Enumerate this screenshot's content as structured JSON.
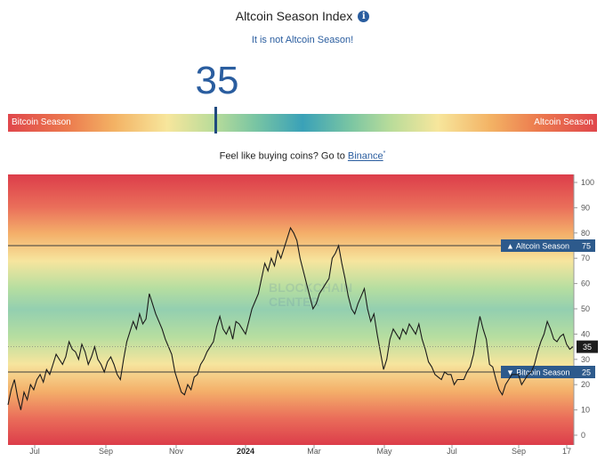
{
  "header": {
    "title": "Altcoin Season Index",
    "info_icon": "info-icon",
    "status_text": "It is not Altcoin Season!",
    "index_value": "35"
  },
  "meter": {
    "left_label": "Bitcoin Season",
    "right_label": "Altcoin Season",
    "value": 35
  },
  "promo": {
    "text": "Feel like buying coins? Go to ",
    "link_text": "Binance",
    "sup": "*"
  },
  "watermark": {
    "line1": "BLOCKCHAIN",
    "line2": "CENTER"
  },
  "chart_data": {
    "type": "line",
    "xlabels": [
      "Jul",
      "Sep",
      "Nov",
      "2024",
      "Mar",
      "May",
      "Jul",
      "Sep",
      "17"
    ],
    "bold_xlabel": "2024",
    "ylim": [
      0,
      100
    ],
    "yticks": [
      0,
      10,
      20,
      30,
      40,
      50,
      60,
      70,
      80,
      90,
      100
    ],
    "reference_lines": [
      {
        "label": "Altcoin Season",
        "value": 75
      },
      {
        "label": "Bitcoin Season",
        "value": 25
      }
    ],
    "current_value": 35,
    "series": [
      {
        "values": [
          12,
          18,
          22,
          15,
          10,
          17,
          14,
          20,
          18,
          22,
          24,
          21,
          26,
          24,
          28,
          32,
          30,
          28,
          31,
          37,
          34,
          33,
          30,
          36,
          33,
          28,
          31,
          35,
          30,
          28,
          25,
          29,
          31,
          28,
          24,
          22,
          30,
          37,
          41,
          45,
          42,
          48,
          44,
          46,
          56,
          52,
          48,
          45,
          42,
          38,
          35,
          32,
          25,
          21,
          17,
          16,
          20,
          18,
          23,
          24,
          28,
          30,
          33,
          35,
          37,
          43,
          47,
          42,
          40,
          43,
          38,
          45,
          44,
          42,
          40,
          45,
          50,
          53,
          56,
          62,
          68,
          65,
          70,
          67,
          73,
          70,
          74,
          78,
          82,
          80,
          77,
          70,
          65,
          60,
          55,
          50,
          52,
          56,
          58,
          60,
          62,
          70,
          72,
          75,
          68,
          62,
          55,
          50,
          48,
          52,
          55,
          58,
          50,
          45,
          48,
          40,
          33,
          26,
          30,
          38,
          42,
          40,
          38,
          42,
          40,
          44,
          42,
          40,
          44,
          38,
          34,
          29,
          27,
          24,
          23,
          22,
          25,
          24,
          24,
          20,
          22,
          22,
          22,
          25,
          27,
          32,
          40,
          47,
          42,
          38,
          28,
          27,
          22,
          18,
          16,
          20,
          22,
          24,
          24,
          24,
          20,
          22,
          24,
          25,
          28,
          33,
          37,
          40,
          45,
          42,
          38,
          37,
          39,
          40,
          36,
          34,
          35
        ]
      }
    ]
  }
}
